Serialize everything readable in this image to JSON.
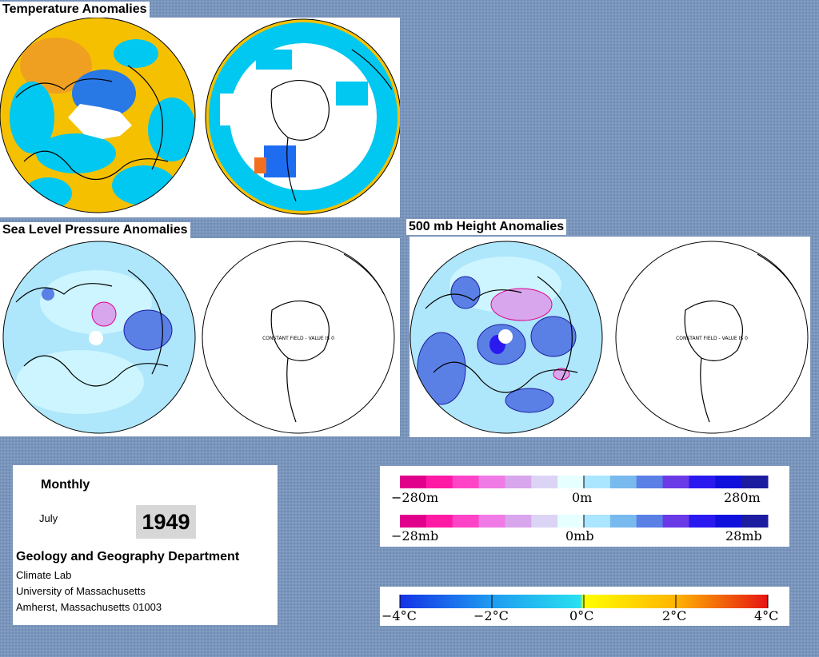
{
  "titles": {
    "temperature": "Temperature Anomalies",
    "slp": "Sea Level Pressure Anomalies",
    "height500": "500 mb Height Anomalies"
  },
  "maps": {
    "constant_field_note": "CONSTANT FIELD - VALUE IS 0"
  },
  "info": {
    "period": "Monthly",
    "month": "July",
    "year": "1949",
    "department": "Geology and Geography Department",
    "lab": "Climate Lab",
    "university": "University of Massachusetts",
    "address": "Amherst, Massachusetts 01003"
  },
  "legends": {
    "height": {
      "left": "−280m",
      "mid": "0m",
      "right": "280m"
    },
    "pressure": {
      "left": "−28mb",
      "mid": "0mb",
      "right": "28mb"
    },
    "temperature": {
      "t1": "−4°C",
      "t2": "−2°C",
      "t3": "0°C",
      "t4": "2°C",
      "t5": "4°C"
    }
  },
  "colors": {
    "anomaly_scale": [
      "#e0008c",
      "#ff1aa6",
      "#ff44c8",
      "#f07ae6",
      "#d8a6ec",
      "#dcd4f4",
      "#e6ffff",
      "#aae6ff",
      "#78baee",
      "#5a80e6",
      "#6a3ae6",
      "#2a1af0",
      "#1010dc",
      "#1c1ca0"
    ],
    "temperature_scale": [
      "#1432e6",
      "#1e6cf0",
      "#1e9cf0",
      "#1ec0f0",
      "#28e0f0",
      "#ffff00",
      "#ffd200",
      "#ffb400",
      "#ff9600",
      "#ff5a00",
      "#e61414"
    ],
    "water_warm": "#f5c000",
    "water_cool": "#00c8f0",
    "map_base_light": "#ccf5ff",
    "map_mid": "#78c8f0"
  }
}
